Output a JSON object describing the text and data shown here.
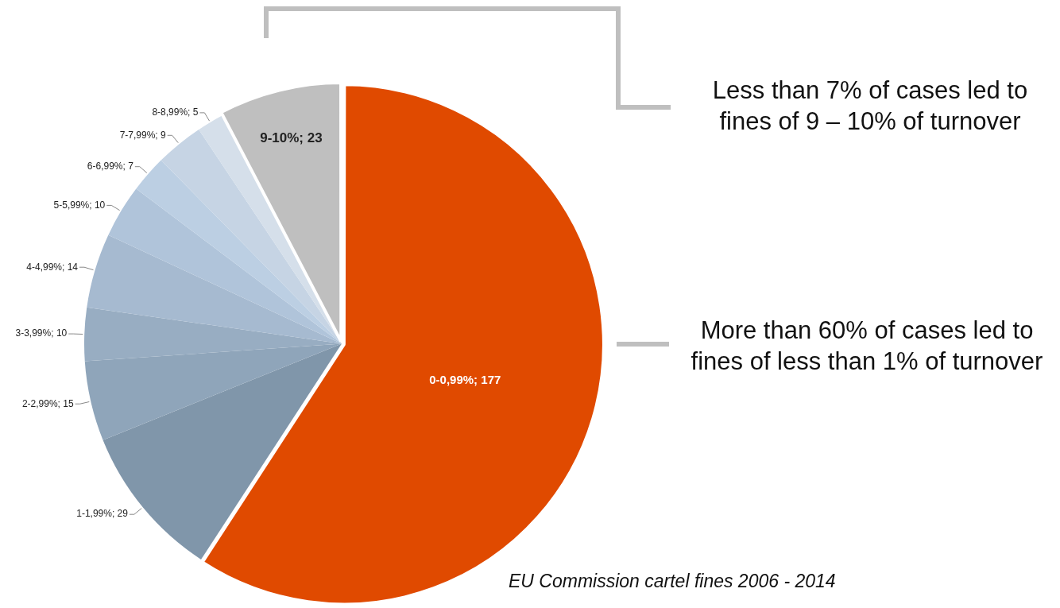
{
  "chart_data": {
    "type": "pie",
    "categories": [
      "0-0,99%",
      "1-1,99%",
      "2-2,99%",
      "3-3,99%",
      "4-4,99%",
      "5-5,99%",
      "6-6,99%",
      "7-7,99%",
      "8-8,99%",
      "9-10%"
    ],
    "values": [
      177,
      29,
      15,
      10,
      14,
      10,
      7,
      9,
      5,
      23
    ],
    "value_labels": [
      "; 177",
      "; 29",
      "; 15",
      "; 10",
      "; 14",
      "; 10",
      "; 7",
      "; 9",
      "; 5",
      "; 23"
    ],
    "colors": [
      "#e04a00",
      "#8096aa",
      "#8fa5ba",
      "#98adc2",
      "#a6bad0",
      "#b0c4da",
      "#bccfe3",
      "#c6d4e4",
      "#d5dfea",
      "#bfbfbf"
    ],
    "legend": false,
    "annotations": [
      "Less than 7% of cases led to fines of 9 – 10% of turnover",
      "More than 60% of cases led to fines of less than 1% of turnover",
      "EU Commission cartel fines 2006 - 2014"
    ]
  }
}
